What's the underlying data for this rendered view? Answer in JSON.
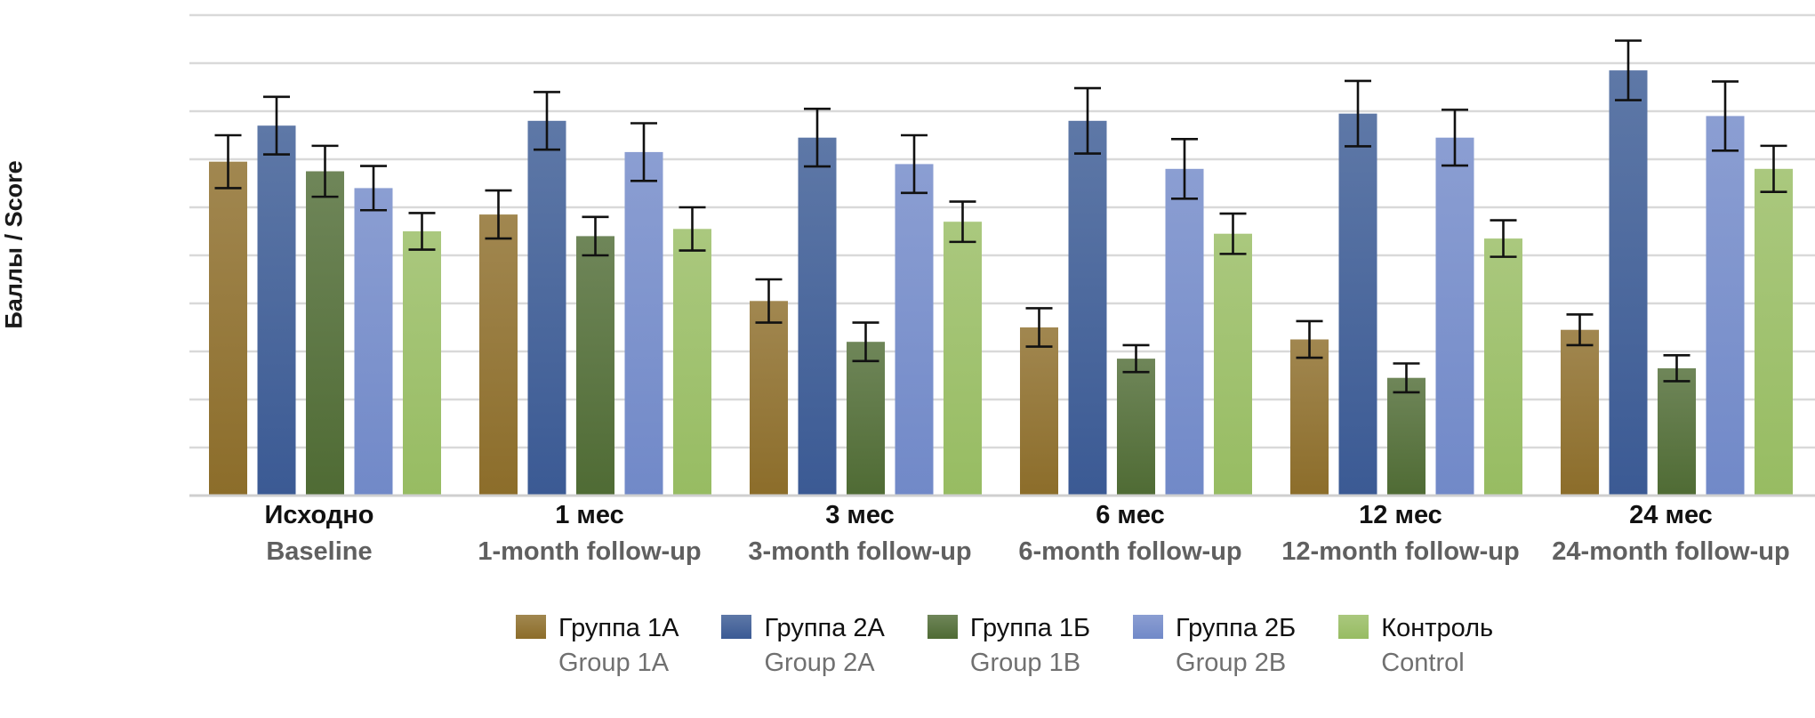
{
  "chart_data": {
    "type": "bar",
    "ylabel": "Баллы / Score",
    "xlabel": "",
    "ylim": [
      0,
      10
    ],
    "grid": true,
    "legend_position": "bottom",
    "categories": [
      {
        "ru": "Исходно",
        "en": "Baseline"
      },
      {
        "ru": "1 мес",
        "en": "1-month follow-up"
      },
      {
        "ru": "3 мес",
        "en": "3-month follow-up"
      },
      {
        "ru": "6 мес",
        "en": "6-month follow-up"
      },
      {
        "ru": "12 мес",
        "en": "12-month follow-up"
      },
      {
        "ru": "24 мес",
        "en": "24-month follow-up"
      }
    ],
    "series": [
      {
        "name": "Группа 1А",
        "name_en": "Group 1A",
        "color": "#8c6d2a",
        "values": [
          6.95,
          5.85,
          4.05,
          3.5,
          3.25,
          3.45
        ],
        "errors": [
          0.55,
          0.5,
          0.45,
          0.4,
          0.38,
          0.32
        ]
      },
      {
        "name": "Группа 2А",
        "name_en": "Group 2A",
        "color": "#3b5a94",
        "values": [
          7.7,
          7.8,
          7.45,
          7.8,
          7.95,
          8.85
        ],
        "errors": [
          0.6,
          0.6,
          0.6,
          0.68,
          0.68,
          0.62
        ]
      },
      {
        "name": "Группа 1Б",
        "name_en": "Group 1B",
        "color": "#4f6b34",
        "values": [
          6.75,
          5.4,
          3.2,
          2.85,
          2.45,
          2.65
        ],
        "errors": [
          0.53,
          0.4,
          0.4,
          0.28,
          0.3,
          0.27
        ]
      },
      {
        "name": "Группа 2Б",
        "name_en": "Group 2B",
        "color": "#7189c8",
        "values": [
          6.4,
          7.15,
          6.9,
          6.8,
          7.45,
          7.9
        ],
        "errors": [
          0.46,
          0.6,
          0.6,
          0.62,
          0.58,
          0.72
        ]
      },
      {
        "name": "Контроль",
        "name_en": "Control",
        "color": "#97bc62",
        "values": [
          5.5,
          5.55,
          5.7,
          5.45,
          5.35,
          6.8
        ],
        "errors": [
          0.38,
          0.45,
          0.42,
          0.42,
          0.38,
          0.48
        ]
      }
    ]
  }
}
